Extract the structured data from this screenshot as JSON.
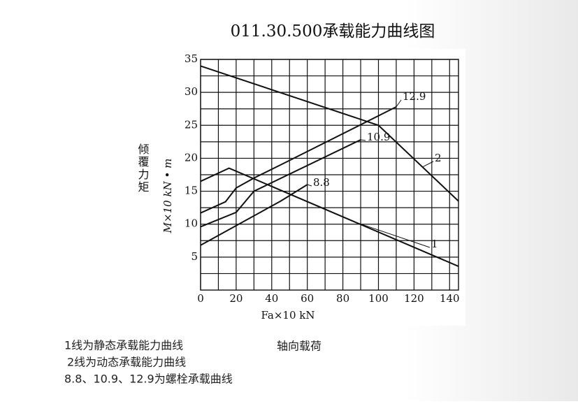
{
  "chart_data": {
    "type": "line",
    "title": "011.30.500承载能力曲线图",
    "y_label_cn": "倾覆力矩",
    "y_label": "M×10  kN • m",
    "x_label": "Fa×10  kN",
    "xlim": [
      0,
      145
    ],
    "ylim": [
      0,
      35
    ],
    "xticks": [
      0,
      20,
      40,
      60,
      80,
      100,
      120,
      140
    ],
    "yticks": [
      5,
      10,
      15,
      20,
      25,
      30,
      35
    ],
    "x_minor_ticks": [
      10,
      30,
      50,
      70,
      90,
      110,
      130
    ],
    "y_minor_ticks": [
      2.5,
      7.5,
      12.5,
      17.5,
      22.5,
      27.5,
      32.5
    ],
    "grid": true,
    "series": [
      {
        "name": "1",
        "color": "#111111",
        "x": [
          0,
          16,
          145
        ],
        "values": [
          16.5,
          18.5,
          3.6
        ]
      },
      {
        "name": "2",
        "color": "#111111",
        "x": [
          0,
          100,
          145
        ],
        "values": [
          34,
          25,
          13.5
        ]
      },
      {
        "name": "8.8",
        "color": "#111111",
        "x": [
          0,
          45,
          60
        ],
        "values": [
          6.8,
          13.5,
          16
        ]
      },
      {
        "name": "10.9",
        "color": "#111111",
        "x": [
          0,
          20,
          30,
          90
        ],
        "values": [
          9.6,
          11.8,
          15,
          22.8
        ]
      },
      {
        "name": "12.9",
        "color": "#111111",
        "x": [
          0,
          14,
          20,
          30,
          45,
          110
        ],
        "values": [
          11.7,
          13.4,
          15.5,
          17,
          19,
          27.8
        ]
      }
    ],
    "annotations": [
      "1线为静态承载能力曲线",
      "2线为动态承载能力曲线",
      "8.8、10.9、12.9为螺栓承载曲线",
      "轴向载荷"
    ]
  }
}
